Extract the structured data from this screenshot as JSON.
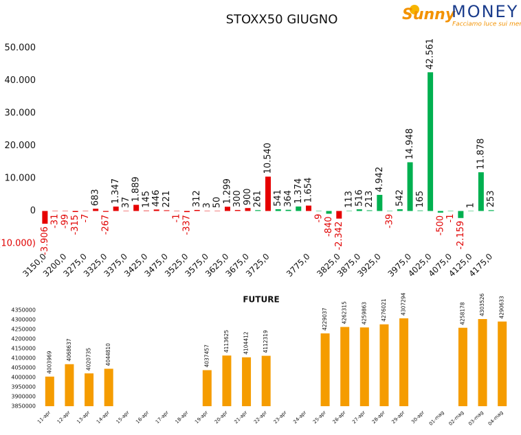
{
  "logo": {
    "brand": "Sunny",
    "name": "MONEY",
    "tagline": "Facciamo luce sui mercati"
  },
  "chart_data": [
    {
      "type": "bar",
      "title": "STOXX50 GIUGNO",
      "categories": [
        "3150,0",
        null,
        "3200,0",
        null,
        "3275,0",
        null,
        "3325,0",
        null,
        "3375,0",
        null,
        "3425,0",
        null,
        "3475,0",
        null,
        "3525,0",
        null,
        "3575,0",
        null,
        "3625,0",
        null,
        "3675,0",
        null,
        "3725,0",
        null,
        null,
        null,
        "3775,0",
        null,
        null,
        "3825,0",
        null,
        "3875,0",
        null,
        "3925,0",
        null,
        null,
        "3975,0",
        null,
        "4025,0",
        null,
        "4075,0",
        null,
        "4125,0",
        null,
        "4175,0"
      ],
      "values": [
        -3906,
        -31,
        -99,
        -315,
        -7,
        683,
        -267,
        1347,
        37,
        1889,
        145,
        446,
        221,
        -1,
        -337,
        312,
        3,
        50,
        1299,
        300,
        900,
        261,
        10540,
        541,
        364,
        1374,
        1654,
        -9,
        -840,
        -2342,
        113,
        516,
        213,
        4942,
        -39,
        542,
        14948,
        165,
        42561,
        -500,
        -1,
        -2159,
        1,
        11878,
        253
      ],
      "value_labels": [
        "-3.906",
        "-31",
        "-99",
        "-315",
        "-7",
        "683",
        "-267",
        "1.347",
        "37",
        "1.889",
        "145",
        "446",
        "221",
        "-1",
        "-337",
        "312",
        "3",
        "50",
        "1.299",
        "300",
        "900",
        "261",
        "10.540",
        "541",
        "364",
        "1.374",
        "1.654",
        "-9",
        "-840",
        "-2.342",
        "113",
        "516",
        "213",
        "4.942",
        "-39",
        "542",
        "14.948",
        "165",
        "42.561",
        "-500",
        "-1",
        "-2.159",
        "1",
        "11.878",
        "253"
      ],
      "colors": [
        "#e60000",
        "#e60000",
        "#e60000",
        "#e60000",
        "#e60000",
        "#e60000",
        "#e60000",
        "#e60000",
        "#e60000",
        "#e60000",
        "#e60000",
        "#e60000",
        "#e60000",
        "#e60000",
        "#e60000",
        "#e60000",
        "#e60000",
        "#e60000",
        "#e60000",
        "#e60000",
        "#e60000",
        "#00b050",
        "#e60000",
        "#00b050",
        "#00b050",
        "#00b050",
        "#e60000",
        "#00b050",
        "#00b050",
        "#e60000",
        "#00b050",
        "#00b050",
        "#00b050",
        "#00b050",
        "#00b050",
        "#00b050",
        "#00b050",
        "#00b050",
        "#00b050",
        "#00b050",
        "#00b050",
        "#00b050",
        "#00b050",
        "#00b050",
        "#00b050"
      ],
      "ylim": [
        -10000,
        50000
      ],
      "yticks": [
        {
          "value": -10000,
          "label": "(10.000)"
        },
        0,
        {
          "value": 10000,
          "label": "10.000"
        },
        {
          "value": 20000,
          "label": "20.000"
        },
        {
          "value": 30000,
          "label": "30.000"
        },
        {
          "value": 40000,
          "label": "40.000"
        },
        {
          "value": 50000,
          "label": "50.000"
        }
      ]
    },
    {
      "type": "bar",
      "title": "FUTURE",
      "categories": [
        "11-apr",
        "12-apr",
        "13-apr",
        "14-apr",
        "15-apr",
        "16-apr",
        "17-apr",
        "18-apr",
        "19-apr",
        "20-apr",
        "21-apr",
        "22-apr",
        "23-apr",
        "24-apr",
        "25-apr",
        "26-apr",
        "27-apr",
        "28-apr",
        "29-apr",
        "30-apr",
        "01-mag",
        "02-mag",
        "03-mag",
        "04-mag"
      ],
      "values": [
        4003969,
        4068637,
        4020735,
        4044810,
        null,
        null,
        null,
        null,
        4037457,
        4113625,
        4104412,
        4112319,
        null,
        null,
        4229037,
        4262315,
        4259863,
        4276021,
        4307294,
        null,
        null,
        4258178,
        4303526,
        4290633
      ],
      "color": "#f59c00",
      "ylim": [
        3850000,
        4350000
      ],
      "yticks": [
        3850000,
        3900000,
        3950000,
        4000000,
        4050000,
        4100000,
        4150000,
        4200000,
        4250000,
        4300000,
        4350000
      ]
    }
  ]
}
